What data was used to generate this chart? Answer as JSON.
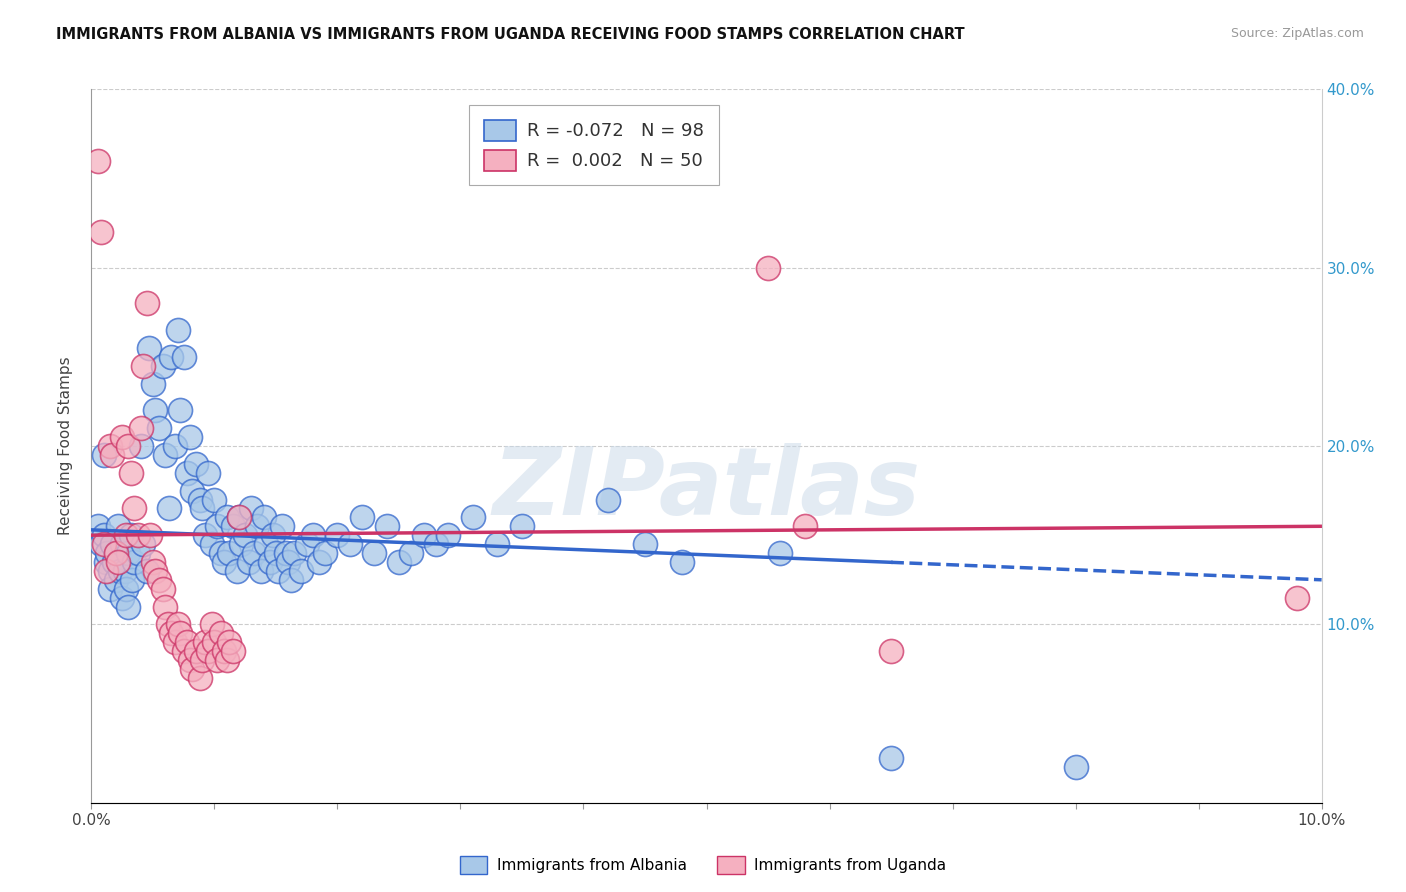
{
  "title": "IMMIGRANTS FROM ALBANIA VS IMMIGRANTS FROM UGANDA RECEIVING FOOD STAMPS CORRELATION CHART",
  "source": "Source: ZipAtlas.com",
  "ylabel": "Receiving Food Stamps",
  "xmin": 0.0,
  "xmax": 10.0,
  "ymin": 0.0,
  "ymax": 40.0,
  "legend_albania_r": "-0.072",
  "legend_albania_n": "98",
  "legend_uganda_r": "0.002",
  "legend_uganda_n": "50",
  "albania_color": "#a8c8e8",
  "uganda_color": "#f5b0c0",
  "trend_albania_color": "#3366cc",
  "trend_uganda_color": "#cc3366",
  "watermark": "ZIPatlas",
  "albania_points": [
    [
      0.05,
      15.5
    ],
    [
      0.08,
      14.5
    ],
    [
      0.1,
      19.5
    ],
    [
      0.1,
      15.0
    ],
    [
      0.12,
      13.5
    ],
    [
      0.13,
      14.0
    ],
    [
      0.15,
      13.0
    ],
    [
      0.15,
      12.0
    ],
    [
      0.17,
      14.5
    ],
    [
      0.18,
      13.5
    ],
    [
      0.2,
      14.0
    ],
    [
      0.2,
      12.5
    ],
    [
      0.22,
      15.5
    ],
    [
      0.23,
      13.0
    ],
    [
      0.25,
      14.5
    ],
    [
      0.25,
      11.5
    ],
    [
      0.27,
      13.0
    ],
    [
      0.28,
      12.0
    ],
    [
      0.3,
      14.0
    ],
    [
      0.3,
      11.0
    ],
    [
      0.32,
      15.0
    ],
    [
      0.33,
      12.5
    ],
    [
      0.35,
      13.5
    ],
    [
      0.38,
      14.0
    ],
    [
      0.4,
      20.0
    ],
    [
      0.42,
      14.5
    ],
    [
      0.45,
      13.0
    ],
    [
      0.47,
      25.5
    ],
    [
      0.5,
      23.5
    ],
    [
      0.52,
      22.0
    ],
    [
      0.55,
      21.0
    ],
    [
      0.58,
      24.5
    ],
    [
      0.6,
      19.5
    ],
    [
      0.63,
      16.5
    ],
    [
      0.65,
      25.0
    ],
    [
      0.68,
      20.0
    ],
    [
      0.7,
      26.5
    ],
    [
      0.72,
      22.0
    ],
    [
      0.75,
      25.0
    ],
    [
      0.78,
      18.5
    ],
    [
      0.8,
      20.5
    ],
    [
      0.82,
      17.5
    ],
    [
      0.85,
      19.0
    ],
    [
      0.88,
      17.0
    ],
    [
      0.9,
      16.5
    ],
    [
      0.92,
      15.0
    ],
    [
      0.95,
      18.5
    ],
    [
      0.98,
      14.5
    ],
    [
      1.0,
      17.0
    ],
    [
      1.02,
      15.5
    ],
    [
      1.05,
      14.0
    ],
    [
      1.08,
      13.5
    ],
    [
      1.1,
      16.0
    ],
    [
      1.12,
      14.0
    ],
    [
      1.15,
      15.5
    ],
    [
      1.18,
      13.0
    ],
    [
      1.2,
      16.0
    ],
    [
      1.22,
      14.5
    ],
    [
      1.25,
      15.0
    ],
    [
      1.28,
      13.5
    ],
    [
      1.3,
      16.5
    ],
    [
      1.32,
      14.0
    ],
    [
      1.35,
      15.5
    ],
    [
      1.38,
      13.0
    ],
    [
      1.4,
      16.0
    ],
    [
      1.42,
      14.5
    ],
    [
      1.45,
      13.5
    ],
    [
      1.48,
      15.0
    ],
    [
      1.5,
      14.0
    ],
    [
      1.52,
      13.0
    ],
    [
      1.55,
      15.5
    ],
    [
      1.58,
      14.0
    ],
    [
      1.6,
      13.5
    ],
    [
      1.62,
      12.5
    ],
    [
      1.65,
      14.0
    ],
    [
      1.7,
      13.0
    ],
    [
      1.75,
      14.5
    ],
    [
      1.8,
      15.0
    ],
    [
      1.85,
      13.5
    ],
    [
      1.9,
      14.0
    ],
    [
      2.0,
      15.0
    ],
    [
      2.1,
      14.5
    ],
    [
      2.2,
      16.0
    ],
    [
      2.3,
      14.0
    ],
    [
      2.4,
      15.5
    ],
    [
      2.5,
      13.5
    ],
    [
      2.6,
      14.0
    ],
    [
      2.7,
      15.0
    ],
    [
      2.8,
      14.5
    ],
    [
      2.9,
      15.0
    ],
    [
      3.1,
      16.0
    ],
    [
      3.3,
      14.5
    ],
    [
      3.5,
      15.5
    ],
    [
      4.2,
      17.0
    ],
    [
      4.5,
      14.5
    ],
    [
      4.8,
      13.5
    ],
    [
      5.6,
      14.0
    ],
    [
      6.5,
      2.5
    ],
    [
      8.0,
      2.0
    ]
  ],
  "uganda_points": [
    [
      0.05,
      36.0
    ],
    [
      0.08,
      32.0
    ],
    [
      0.1,
      14.5
    ],
    [
      0.12,
      13.0
    ],
    [
      0.15,
      20.0
    ],
    [
      0.17,
      19.5
    ],
    [
      0.2,
      14.0
    ],
    [
      0.22,
      13.5
    ],
    [
      0.25,
      20.5
    ],
    [
      0.28,
      15.0
    ],
    [
      0.3,
      20.0
    ],
    [
      0.32,
      18.5
    ],
    [
      0.35,
      16.5
    ],
    [
      0.38,
      15.0
    ],
    [
      0.4,
      21.0
    ],
    [
      0.42,
      24.5
    ],
    [
      0.45,
      28.0
    ],
    [
      0.48,
      15.0
    ],
    [
      0.5,
      13.5
    ],
    [
      0.52,
      13.0
    ],
    [
      0.55,
      12.5
    ],
    [
      0.58,
      12.0
    ],
    [
      0.6,
      11.0
    ],
    [
      0.62,
      10.0
    ],
    [
      0.65,
      9.5
    ],
    [
      0.68,
      9.0
    ],
    [
      0.7,
      10.0
    ],
    [
      0.72,
      9.5
    ],
    [
      0.75,
      8.5
    ],
    [
      0.78,
      9.0
    ],
    [
      0.8,
      8.0
    ],
    [
      0.82,
      7.5
    ],
    [
      0.85,
      8.5
    ],
    [
      0.88,
      7.0
    ],
    [
      0.9,
      8.0
    ],
    [
      0.92,
      9.0
    ],
    [
      0.95,
      8.5
    ],
    [
      0.98,
      10.0
    ],
    [
      1.0,
      9.0
    ],
    [
      1.02,
      8.0
    ],
    [
      1.05,
      9.5
    ],
    [
      1.08,
      8.5
    ],
    [
      1.1,
      8.0
    ],
    [
      1.12,
      9.0
    ],
    [
      1.15,
      8.5
    ],
    [
      1.2,
      16.0
    ],
    [
      5.5,
      30.0
    ],
    [
      5.8,
      15.5
    ],
    [
      6.5,
      8.5
    ],
    [
      9.8,
      11.5
    ]
  ],
  "albania_trend_x": [
    0.0,
    10.0
  ],
  "albania_trend_y": [
    15.3,
    12.5
  ],
  "albania_solid_end": 6.5,
  "uganda_trend_x": [
    0.0,
    10.0
  ],
  "uganda_trend_y": [
    15.0,
    15.5
  ]
}
